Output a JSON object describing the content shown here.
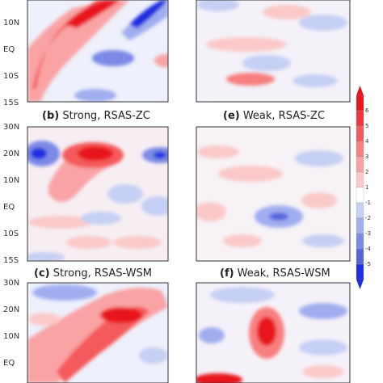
{
  "chart_data": {
    "type": "heatmap",
    "panels": [
      {
        "title": "",
        "y_ticks": [
          "10N",
          "EQ",
          "10S",
          "15S"
        ]
      },
      {
        "title": "",
        "y_ticks": []
      },
      {
        "title": "(b) Strong, RSAS-ZC",
        "y_ticks": [
          "30N",
          "20N",
          "10N",
          "EQ",
          "10S",
          "15S"
        ]
      },
      {
        "title": "(e) Weak, RSAS-ZC",
        "y_ticks": []
      },
      {
        "title": "(c) Strong, RSAS-WSM",
        "y_ticks": [
          "30N",
          "20N",
          "10N",
          "EQ"
        ]
      },
      {
        "title": "(f) Weak, RSAS-WSM",
        "y_ticks": []
      }
    ],
    "panel_titles": [
      {
        "letter": "(b)",
        "text": " Strong, RSAS-ZC"
      },
      {
        "letter": "(e)",
        "text": " Weak, RSAS-ZC"
      },
      {
        "letter": "(c)",
        "text": " Strong, RSAS-WSM"
      },
      {
        "letter": "(f)",
        "text": " Weak, RSAS-WSM"
      }
    ],
    "colorbar": {
      "levels": [
        "6",
        "5",
        "4",
        "3",
        "2",
        "1",
        "-1",
        "-2",
        "-3",
        "-4",
        "-5"
      ],
      "colors": [
        "#e8141c",
        "#f0353c",
        "#f45a5c",
        "#f77f80",
        "#f9a3a4",
        "#fbc9c9",
        "#ffffff",
        "#c6cff4",
        "#a0aef0",
        "#7b8ae6",
        "#5566dd",
        "#1f2ee0"
      ]
    },
    "features": [
      {
        "panel": 0,
        "sign": 1,
        "level": 6,
        "lat": 24,
        "lon": 0.32
      },
      {
        "panel": 0,
        "sign": -1,
        "level": 6,
        "lat": 22,
        "lon": 0.82
      },
      {
        "panel": 0,
        "sign": -1,
        "level": 3,
        "lat": 2,
        "lon": 0.62
      },
      {
        "panel": 2,
        "sign": 1,
        "level": 6,
        "lat": 20,
        "lon": 0.46
      },
      {
        "panel": 2,
        "sign": -1,
        "level": 4,
        "lat": 20,
        "lon": 0.12
      },
      {
        "panel": 2,
        "sign": -1,
        "level": 3,
        "lat": 20,
        "lon": 0.92
      },
      {
        "panel": 3,
        "sign": -1,
        "level": 3,
        "lat": -4,
        "lon": 0.48
      },
      {
        "panel": 4,
        "sign": 1,
        "level": 5,
        "lat": 18,
        "lon": 0.72
      },
      {
        "panel": 5,
        "sign": 1,
        "level": 5,
        "lat": 14,
        "lon": 0.52
      }
    ]
  }
}
